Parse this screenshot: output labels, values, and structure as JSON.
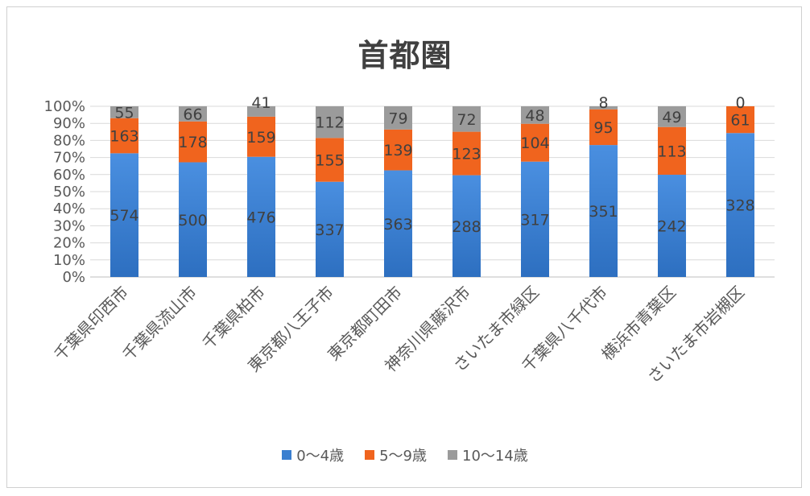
{
  "chart_data": {
    "type": "bar",
    "stacked": "percent",
    "title": "首都圏",
    "categories": [
      "千葉県印西市",
      "千葉県流山市",
      "千葉県柏市",
      "東京都八王子市",
      "東京都町田市",
      "神奈川県藤沢市",
      "さいたま市緑区",
      "千葉県八千代市",
      "横浜市青葉区",
      "さいたま市岩槻区"
    ],
    "series": [
      {
        "name": "0～4歳",
        "color": "#3a7fd0",
        "values": [
          574,
          500,
          476,
          337,
          363,
          288,
          317,
          351,
          242,
          328
        ]
      },
      {
        "name": "5～9歳",
        "color": "#f0641e",
        "values": [
          163,
          178,
          159,
          155,
          139,
          123,
          104,
          95,
          113,
          61
        ]
      },
      {
        "name": "10～14歳",
        "color": "#9b9b9b",
        "values": [
          55,
          66,
          41,
          112,
          79,
          72,
          48,
          8,
          49,
          0
        ]
      }
    ],
    "y_ticks": [
      "0%",
      "10%",
      "20%",
      "30%",
      "40%",
      "50%",
      "60%",
      "70%",
      "80%",
      "90%",
      "100%"
    ],
    "ylim": [
      0,
      100
    ],
    "grid": true,
    "legend_position": "bottom"
  }
}
